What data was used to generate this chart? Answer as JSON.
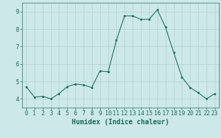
{
  "title": "",
  "xlabel": "Humidex (Indice chaleur)",
  "ylabel": "",
  "x_values": [
    0,
    1,
    2,
    3,
    4,
    5,
    6,
    7,
    8,
    9,
    10,
    11,
    12,
    13,
    14,
    15,
    16,
    17,
    18,
    19,
    20,
    21,
    22,
    23
  ],
  "y_values": [
    4.7,
    4.1,
    4.15,
    4.0,
    4.3,
    4.7,
    4.85,
    4.8,
    4.65,
    5.6,
    5.55,
    7.35,
    8.75,
    8.75,
    8.55,
    8.55,
    9.1,
    8.1,
    6.65,
    5.25,
    4.65,
    4.35,
    4.0,
    4.3
  ],
  "line_color": "#1a6b5a",
  "marker": "s",
  "marker_size": 2.0,
  "background_color": "#cce8e8",
  "grid_color": "#b0d0d0",
  "ylim": [
    3.5,
    9.5
  ],
  "xlim": [
    -0.5,
    23.5
  ],
  "yticks": [
    4,
    5,
    6,
    7,
    8,
    9
  ],
  "xtick_labels": [
    "0",
    "1",
    "2",
    "3",
    "4",
    "5",
    "6",
    "7",
    "8",
    "9",
    "10",
    "11",
    "12",
    "13",
    "14",
    "15",
    "16",
    "17",
    "18",
    "19",
    "20",
    "21",
    "22",
    "23"
  ],
  "tick_color": "#1a6b5a",
  "label_color": "#1a6b5a",
  "font_size_axis": 7,
  "font_size_ticks": 6
}
